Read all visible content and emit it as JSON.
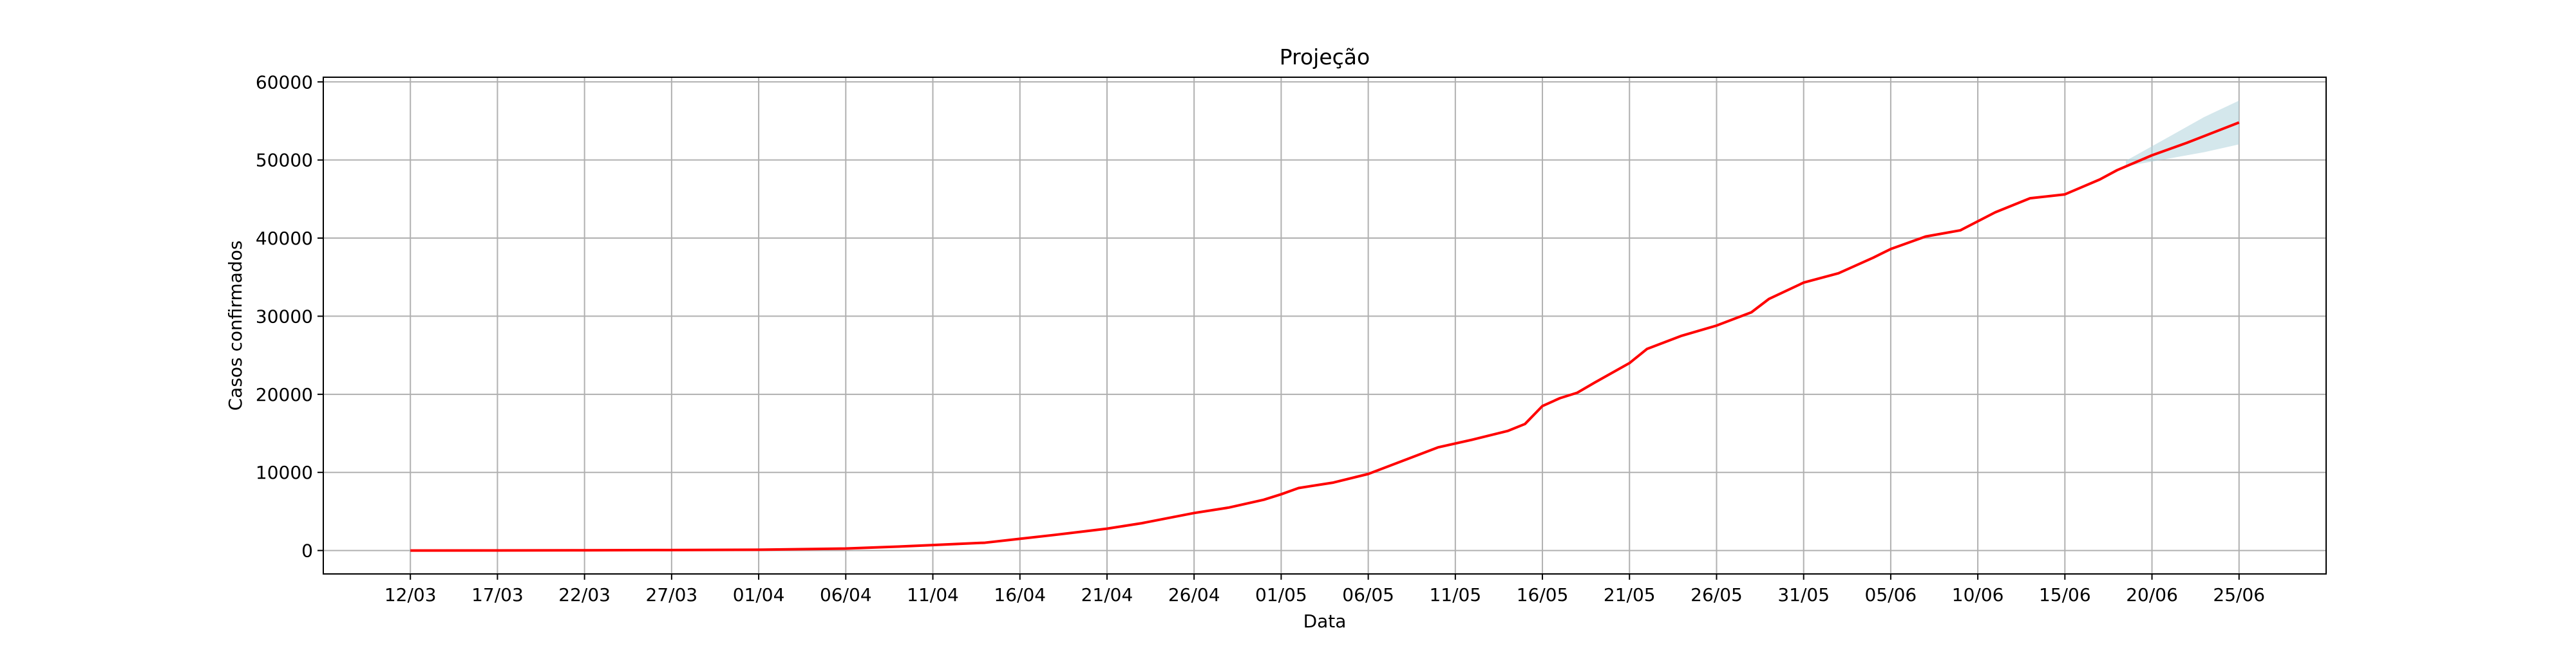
{
  "chart_data": {
    "type": "line",
    "title": "Projeção",
    "xlabel": "Data",
    "ylabel": "Casos confirmados",
    "grid": true,
    "ylim": [
      -3000,
      60600
    ],
    "yticks": [
      0,
      10000,
      20000,
      30000,
      40000,
      50000,
      60000
    ],
    "x_day_range": [
      -5,
      110
    ],
    "xticks": [
      {
        "day": 0,
        "label": "12/03"
      },
      {
        "day": 5,
        "label": "17/03"
      },
      {
        "day": 10,
        "label": "22/03"
      },
      {
        "day": 15,
        "label": "27/03"
      },
      {
        "day": 20,
        "label": "01/04"
      },
      {
        "day": 25,
        "label": "06/04"
      },
      {
        "day": 30,
        "label": "11/04"
      },
      {
        "day": 35,
        "label": "16/04"
      },
      {
        "day": 40,
        "label": "21/04"
      },
      {
        "day": 45,
        "label": "26/04"
      },
      {
        "day": 50,
        "label": "01/05"
      },
      {
        "day": 55,
        "label": "06/05"
      },
      {
        "day": 60,
        "label": "11/05"
      },
      {
        "day": 65,
        "label": "16/05"
      },
      {
        "day": 70,
        "label": "21/05"
      },
      {
        "day": 75,
        "label": "26/05"
      },
      {
        "day": 80,
        "label": "31/05"
      },
      {
        "day": 85,
        "label": "05/06"
      },
      {
        "day": 90,
        "label": "10/06"
      },
      {
        "day": 95,
        "label": "15/06"
      },
      {
        "day": 100,
        "label": "20/06"
      },
      {
        "day": 105,
        "label": "25/06"
      }
    ],
    "series": [
      {
        "color": "#ff0000",
        "points": [
          [
            0,
            0
          ],
          [
            5,
            10
          ],
          [
            10,
            30
          ],
          [
            15,
            60
          ],
          [
            20,
            100
          ],
          [
            25,
            250
          ],
          [
            28,
            500
          ],
          [
            30,
            700
          ],
          [
            33,
            1000
          ],
          [
            35,
            1500
          ],
          [
            37,
            2000
          ],
          [
            40,
            2800
          ],
          [
            42,
            3500
          ],
          [
            45,
            4800
          ],
          [
            47,
            5500
          ],
          [
            49,
            6500
          ],
          [
            50,
            7200
          ],
          [
            51,
            8000
          ],
          [
            53,
            8700
          ],
          [
            55,
            9800
          ],
          [
            57,
            11500
          ],
          [
            59,
            13200
          ],
          [
            61,
            14200
          ],
          [
            63,
            15300
          ],
          [
            64,
            16200
          ],
          [
            65,
            18500
          ],
          [
            66,
            19500
          ],
          [
            67,
            20200
          ],
          [
            68,
            21500
          ],
          [
            70,
            24000
          ],
          [
            71,
            25800
          ],
          [
            73,
            27500
          ],
          [
            75,
            28800
          ],
          [
            77,
            30500
          ],
          [
            78,
            32200
          ],
          [
            80,
            34300
          ],
          [
            82,
            35500
          ],
          [
            84,
            37500
          ],
          [
            85,
            38600
          ],
          [
            87,
            40200
          ],
          [
            89,
            41000
          ],
          [
            91,
            43300
          ],
          [
            93,
            45100
          ],
          [
            95,
            45600
          ],
          [
            97,
            47500
          ],
          [
            98,
            48700
          ],
          [
            100,
            50600
          ],
          [
            102,
            52200
          ],
          [
            105,
            54800
          ]
        ]
      }
    ],
    "band": {
      "color": "#b0d4dc",
      "x": [
        98.5,
        101,
        103,
        105
      ],
      "lower": [
        49200,
        50200,
        51000,
        52000
      ],
      "upper": [
        49900,
        53000,
        55500,
        57600
      ]
    }
  }
}
